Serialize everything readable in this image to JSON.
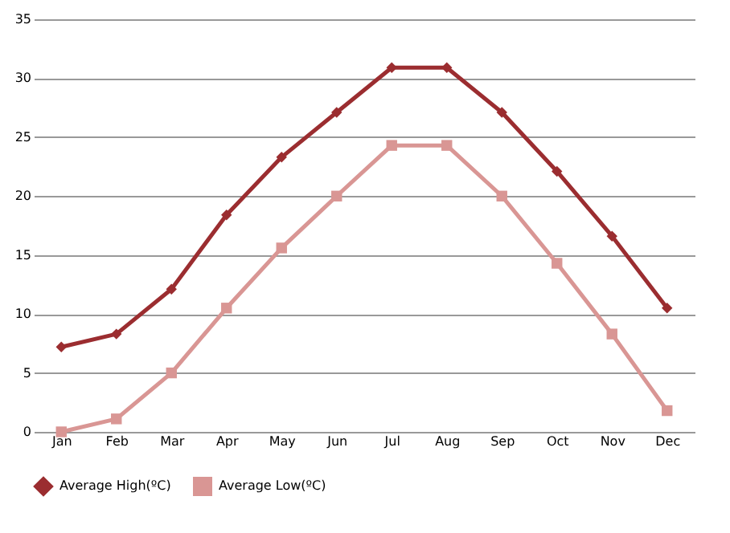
{
  "chart_data": {
    "type": "line",
    "categories": [
      "Jan",
      "Feb",
      "Mar",
      "Apr",
      "May",
      "Jun",
      "Jul",
      "Aug",
      "Sep",
      "Oct",
      "Nov",
      "Dec"
    ],
    "series": [
      {
        "name": "Average High(ºC)",
        "color": "#9b2d30",
        "marker": "diamond",
        "values": [
          7.2,
          8.3,
          12.1,
          18.4,
          23.3,
          27.1,
          30.9,
          30.9,
          27.1,
          22.1,
          16.6,
          10.5
        ]
      },
      {
        "name": "Average Low(ºC)",
        "color": "#d99694",
        "marker": "square",
        "values": [
          0,
          1.1,
          5,
          10.5,
          15.6,
          20,
          24.3,
          24.3,
          20,
          14.3,
          8.3,
          1.8
        ]
      }
    ],
    "ylim": [
      0,
      35
    ],
    "yticks": [
      0,
      5,
      10,
      15,
      20,
      25,
      30,
      35
    ],
    "grid": "y",
    "legend": "bottom",
    "line_style": "solid"
  }
}
